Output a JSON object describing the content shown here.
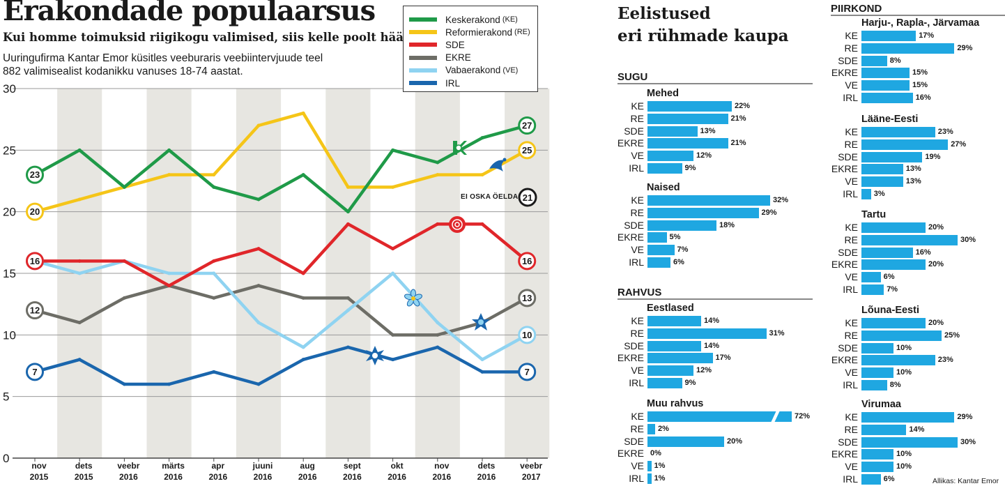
{
  "title": "Erakondade populaarsus",
  "subtitle": "Kui homme toimuksid riigikogu valimised, siis kelle poolt hääletaksite?",
  "description": [
    "Uuringufirma Kantar Emor küsitles veeburaris veebiintervjuude teel",
    "882 valimisealist kodanikku vanuses 18-74 aastat."
  ],
  "no_answer": {
    "label": "EI OSKA ÖELDA",
    "value": "21"
  },
  "chart_data": {
    "type": "line",
    "categories": [
      "nov 2015",
      "dets 2015",
      "veebr 2016",
      "märts 2016",
      "apr 2016",
      "juuni 2016",
      "aug 2016",
      "sept 2016",
      "okt 2016",
      "nov 2016",
      "dets 2016",
      "veebr 2017"
    ],
    "category_lines": [
      [
        "nov",
        "2015"
      ],
      [
        "dets",
        "2015"
      ],
      [
        "veebr",
        "2016"
      ],
      [
        "märts",
        "2016"
      ],
      [
        "apr",
        "2016"
      ],
      [
        "juuni",
        "2016"
      ],
      [
        "aug",
        "2016"
      ],
      [
        "sept",
        "2016"
      ],
      [
        "okt",
        "2016"
      ],
      [
        "nov",
        "2016"
      ],
      [
        "dets",
        "2016"
      ],
      [
        "veebr",
        "2017"
      ]
    ],
    "ylim": [
      0,
      30
    ],
    "yticks": [
      0,
      5,
      10,
      15,
      20,
      25,
      30
    ],
    "series": [
      {
        "name": "Keskerakond",
        "abbr": "(KE)",
        "color": "#1f9a48",
        "values": [
          23,
          25,
          22,
          25,
          22,
          21,
          23,
          20,
          25,
          24,
          26,
          27
        ]
      },
      {
        "name": "Reformierakond",
        "abbr": "(RE)",
        "color": "#f5c518",
        "values": [
          20,
          21,
          22,
          23,
          23,
          27,
          28,
          22,
          22,
          23,
          23,
          25
        ]
      },
      {
        "name": "SDE",
        "abbr": "",
        "color": "#e0262a",
        "values": [
          16,
          16,
          16,
          14,
          16,
          17,
          15,
          19,
          17,
          19,
          19,
          16
        ]
      },
      {
        "name": "EKRE",
        "abbr": "",
        "color": "#6d6d66",
        "values": [
          12,
          11,
          13,
          14,
          13,
          14,
          13,
          13,
          10,
          10,
          11,
          13
        ]
      },
      {
        "name": "Vabaerakond",
        "abbr": "(VE)",
        "color": "#8fd3f1",
        "values": [
          16,
          15,
          16,
          15,
          15,
          11,
          9,
          12,
          15,
          11,
          8,
          10
        ]
      },
      {
        "name": "IRL",
        "abbr": "",
        "color": "#1a66ad",
        "values": [
          7,
          8,
          6,
          6,
          7,
          6,
          8,
          9,
          8,
          9,
          7,
          7
        ]
      }
    ]
  },
  "right_panel": {
    "title_lines": [
      "Eelistused",
      "eri rühmade kaupa"
    ],
    "source": "Allikas: Kantar Emor",
    "left_sections": [
      {
        "title": "SUGU",
        "groups": [
          {
            "title": "Mehed",
            "rows": [
              {
                "p": "KE",
                "v": 22,
                "t": "22%"
              },
              {
                "p": "RE",
                "v": 21,
                "t": "21%"
              },
              {
                "p": "SDE",
                "v": 13,
                "t": "13%"
              },
              {
                "p": "EKRE",
                "v": 21,
                "t": "21%"
              },
              {
                "p": "VE",
                "v": 12,
                "t": "12%"
              },
              {
                "p": "IRL",
                "v": 9,
                "t": "9%"
              }
            ]
          },
          {
            "title": "Naised",
            "rows": [
              {
                "p": "KE",
                "v": 32,
                "t": "32%"
              },
              {
                "p": "RE",
                "v": 29,
                "t": "29%"
              },
              {
                "p": "SDE",
                "v": 18,
                "t": "18%"
              },
              {
                "p": "EKRE",
                "v": 5,
                "t": "5%"
              },
              {
                "p": "VE",
                "v": 7,
                "t": "7%"
              },
              {
                "p": "IRL",
                "v": 6,
                "t": "6%"
              }
            ]
          }
        ]
      },
      {
        "title": "RAHVUS",
        "groups": [
          {
            "title": "Eestlased",
            "rows": [
              {
                "p": "KE",
                "v": 14,
                "t": "14%"
              },
              {
                "p": "RE",
                "v": 31,
                "t": "31%"
              },
              {
                "p": "SDE",
                "v": 14,
                "t": "14%"
              },
              {
                "p": "EKRE",
                "v": 17,
                "t": "17%"
              },
              {
                "p": "VE",
                "v": 12,
                "t": "12%"
              },
              {
                "p": "IRL",
                "v": 9,
                "t": "9%"
              }
            ]
          },
          {
            "title": "Muu rahvus",
            "rows": [
              {
                "p": "KE",
                "v": 72,
                "t": "72%",
                "broken": true
              },
              {
                "p": "RE",
                "v": 2,
                "t": "2%"
              },
              {
                "p": "SDE",
                "v": 20,
                "t": "20%"
              },
              {
                "p": "EKRE",
                "v": 0,
                "t": "0%"
              },
              {
                "p": "VE",
                "v": 1,
                "t": "1%"
              },
              {
                "p": "IRL",
                "v": 1,
                "t": "1%"
              }
            ]
          }
        ]
      }
    ],
    "right_sections": [
      {
        "title": "PIIRKOND",
        "groups": [
          {
            "title": "Harju-, Rapla-, Järvamaa",
            "rows": [
              {
                "p": "KE",
                "v": 17,
                "t": "17%"
              },
              {
                "p": "RE",
                "v": 29,
                "t": "29%"
              },
              {
                "p": "SDE",
                "v": 8,
                "t": "8%"
              },
              {
                "p": "EKRE",
                "v": 15,
                "t": "15%"
              },
              {
                "p": "VE",
                "v": 15,
                "t": "15%"
              },
              {
                "p": "IRL",
                "v": 16,
                "t": "16%"
              }
            ]
          },
          {
            "title": "Lääne-Eesti",
            "rows": [
              {
                "p": "KE",
                "v": 23,
                "t": "23%"
              },
              {
                "p": "RE",
                "v": 27,
                "t": "27%"
              },
              {
                "p": "SDE",
                "v": 19,
                "t": "19%"
              },
              {
                "p": "EKRE",
                "v": 13,
                "t": "13%"
              },
              {
                "p": "VE",
                "v": 13,
                "t": "13%"
              },
              {
                "p": "IRL",
                "v": 3,
                "t": "3%"
              }
            ]
          },
          {
            "title": "Tartu",
            "rows": [
              {
                "p": "KE",
                "v": 20,
                "t": "20%"
              },
              {
                "p": "RE",
                "v": 30,
                "t": "30%"
              },
              {
                "p": "SDE",
                "v": 16,
                "t": "16%"
              },
              {
                "p": "EKRE",
                "v": 20,
                "t": "20%"
              },
              {
                "p": "VE",
                "v": 6,
                "t": "6%"
              },
              {
                "p": "IRL",
                "v": 7,
                "t": "7%"
              }
            ]
          },
          {
            "title": "Lõuna-Eesti",
            "rows": [
              {
                "p": "KE",
                "v": 20,
                "t": "20%"
              },
              {
                "p": "RE",
                "v": 25,
                "t": "25%"
              },
              {
                "p": "SDE",
                "v": 10,
                "t": "10%"
              },
              {
                "p": "EKRE",
                "v": 23,
                "t": "23%"
              },
              {
                "p": "VE",
                "v": 10,
                "t": "10%"
              },
              {
                "p": "IRL",
                "v": 8,
                "t": "8%"
              }
            ]
          },
          {
            "title": "Virumaa",
            "rows": [
              {
                "p": "KE",
                "v": 29,
                "t": "29%"
              },
              {
                "p": "RE",
                "v": 14,
                "t": "14%"
              },
              {
                "p": "SDE",
                "v": 30,
                "t": "30%"
              },
              {
                "p": "EKRE",
                "v": 10,
                "t": "10%"
              },
              {
                "p": "VE",
                "v": 10,
                "t": "10%"
              },
              {
                "p": "IRL",
                "v": 6,
                "t": "6%"
              }
            ]
          }
        ]
      }
    ]
  }
}
